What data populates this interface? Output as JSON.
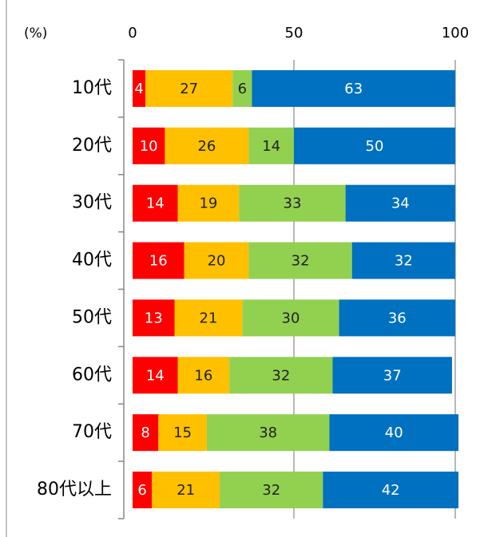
{
  "chart_data": {
    "type": "stacked_barh",
    "unit_label": "(%)",
    "categories": [
      "10代",
      "20代",
      "30代",
      "40代",
      "50代",
      "60代",
      "70代",
      "80代以上"
    ],
    "series": [
      {
        "color": "#ff0000",
        "values": [
          4,
          10,
          14,
          16,
          13,
          14,
          8,
          6
        ]
      },
      {
        "color": "#ffc000",
        "values": [
          27,
          26,
          19,
          20,
          21,
          16,
          15,
          21
        ]
      },
      {
        "color": "#92d050",
        "values": [
          6,
          14,
          33,
          32,
          30,
          32,
          38,
          32
        ]
      },
      {
        "color": "#0070c0",
        "values": [
          63,
          50,
          34,
          32,
          36,
          37,
          40,
          42
        ]
      }
    ],
    "xlim": [
      0,
      100
    ],
    "xticks": [
      0,
      50,
      100
    ],
    "grid": true
  }
}
